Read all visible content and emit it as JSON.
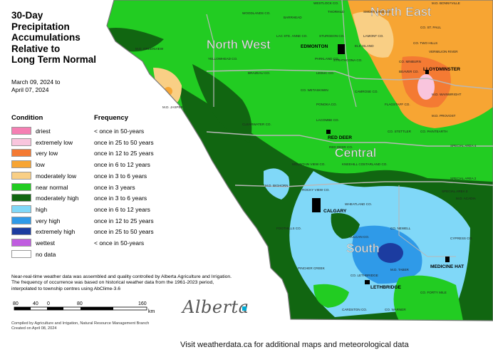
{
  "title": "30-Day\nPrecipitation\nAccumulations\nRelative to\nLong Term Normal",
  "date_range": "March 09, 2024 to\nApril 07, 2024",
  "legend": {
    "condition_header": "Condition",
    "frequency_header": "Frequency",
    "items": [
      {
        "label": "driest",
        "frequency": "< once in 50-years",
        "color": "#f57fb3"
      },
      {
        "label": "extremely low",
        "frequency": "once in 25 to 50 years",
        "color": "#f9c5dd"
      },
      {
        "label": "very low",
        "frequency": "once in 12 to 25 years",
        "color": "#f47a33"
      },
      {
        "label": "low",
        "frequency": "once in 6 to 12 years",
        "color": "#f7a533"
      },
      {
        "label": "moderately low",
        "frequency": "once in 3 to 6 years",
        "color": "#f9cf85"
      },
      {
        "label": "near normal",
        "frequency": "once in 3 years",
        "color": "#22cc22"
      },
      {
        "label": "moderately high",
        "frequency": "once in 3 to 6 years",
        "color": "#116611"
      },
      {
        "label": "high",
        "frequency": "once in 6 to 12 years",
        "color": "#80d8f8"
      },
      {
        "label": "very high",
        "frequency": "once in 12 to 25 years",
        "color": "#2f9ae8"
      },
      {
        "label": "extremely high",
        "frequency": "once in 25 to 50 years",
        "color": "#1c3ca0"
      },
      {
        "label": "wettest",
        "frequency": "< once in 50-years",
        "color": "#c05de0"
      },
      {
        "label": "no data",
        "frequency": "",
        "color": "#ffffff"
      }
    ]
  },
  "note": "Near-real-time weather data was assembled and quality controlled by Alberta Agriculture and Irrigation. The frequency of occurrence was based on historical weather data from the 1961-2023 period, interpolated to township centres using AbClime-3.6",
  "scale": {
    "ticks": [
      "80",
      "40",
      "0",
      "80",
      "160"
    ],
    "unit": "km"
  },
  "credit": "Compiled by Agriculture and Irrigation, Natural Resource Management Branch\nCreated on April 08, 2024",
  "logo": "Alberta",
  "footer": "Visit weatherdata.ca for additional maps and meteorological data",
  "map": {
    "regions": [
      "North West",
      "North East",
      "Central",
      "South"
    ],
    "cities": [
      "EDMONTON",
      "LLOYDMINSTER",
      "RED DEER",
      "CALGARY",
      "MEDICINE HAT",
      "LETHBRIDGE"
    ],
    "counties": [
      "WOODLANDS CO.",
      "BARRHEAD",
      "WESTLOCK CO.",
      "THORHILD",
      "SMOKY LAKE CO.",
      "CO. ST. PAUL",
      "LAMONT CO.",
      "LAC STE. ANNE CO.",
      "STURGEON CO.",
      "ELK ISLAND",
      "STRATHCONA CO.",
      "CO. TWO HILLS",
      "VERMILION RIVER",
      "CO. MINBURN",
      "PARKLAND CO.",
      "YELLOWHEAD CO.",
      "LEDUC CO.",
      "BEAVER CO.",
      "BRAZEAU CO.",
      "CO. WETASKIWIN",
      "M.D. WAINWRIGHT",
      "CAMROSE CO.",
      "PONOKA CO.",
      "M.D. JASPER",
      "FLAGSTAFF CO.",
      "M.D. PROVOST",
      "LACOMBE CO.",
      "CLEARWATER CO.",
      "CO. STETTLER",
      "CO. PAINTEARTH",
      "RED DEER CO.",
      "SPECIAL AREA 4",
      "MOUNTAIN VIEW CO.",
      "KNEEHILL CO.",
      "STARLAND CO.",
      "SPECIAL AREA 2",
      "SPECIAL AREA 3",
      "M.D. BIGHORN",
      "ROCKY VIEW CO.",
      "WHEATLAND CO.",
      "M.D. ACADIA",
      "FOOTHILLS CO.",
      "CO. NEWELL",
      "VULCAN CO.",
      "CYPRESS CO.",
      "M.D. TABER",
      "CO. LETHBRIDGE",
      "PINCHER CREEK",
      "CARDSTON CO.",
      "CO. WARNER",
      "CO. FORTY MILE",
      "M.D. GREENVIEW",
      "M.D. BONNYVILLE"
    ]
  }
}
